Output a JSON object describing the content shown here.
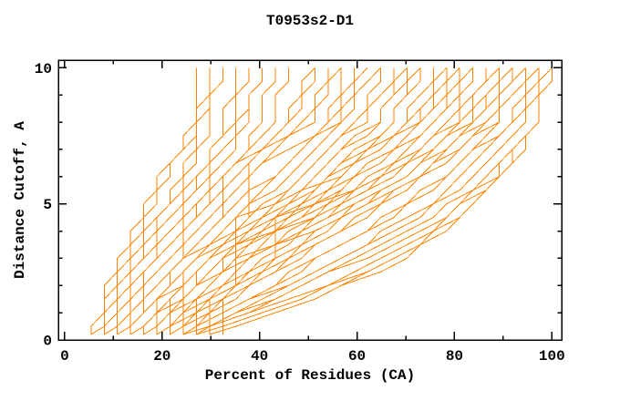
{
  "chart_data": {
    "type": "line",
    "title": "T0953s2-D1",
    "xlabel": "Percent of Residues (CA)",
    "ylabel": "Distance Cutoff, A",
    "xlim": [
      -1.3,
      102
    ],
    "ylim": [
      0,
      10.28
    ],
    "grid": false,
    "legend": "none",
    "background": "#ffffff",
    "axis_color": "#000000",
    "line_color": "#ff8300",
    "xticks": {
      "major": [
        0,
        20,
        40,
        60,
        80,
        100
      ],
      "labels": [
        "0",
        "20",
        "40",
        "60",
        "80",
        "100"
      ],
      "minor": [
        10,
        30,
        50,
        70,
        90
      ]
    },
    "yticks": {
      "major": [
        0,
        5,
        10
      ],
      "labels": [
        "0",
        "5",
        "10"
      ],
      "minor": [
        1,
        2,
        3,
        4,
        6,
        7,
        8,
        9
      ]
    },
    "residue_quantum_percent": 2.7027,
    "cutoff_step": 0.5,
    "anchor_cutoffs": [
      0.2,
      1.5,
      3,
      4.5,
      6,
      8,
      10
    ],
    "series": [
      {
        "percents": [
          6,
          9,
          13,
          17,
          21,
          26,
          28
        ]
      },
      {
        "percents": [
          7,
          10,
          14,
          19,
          24,
          28,
          29
        ]
      },
      {
        "percents": [
          5,
          8,
          12,
          16,
          20,
          28,
          33
        ]
      },
      {
        "percents": [
          8,
          12,
          16,
          20,
          25,
          31,
          31
        ]
      },
      {
        "percents": [
          9,
          13,
          18,
          23,
          28,
          33,
          36
        ]
      },
      {
        "percents": [
          7,
          11,
          15,
          21,
          27,
          34,
          38
        ]
      },
      {
        "percents": [
          10,
          14,
          19,
          25,
          31,
          37,
          40
        ]
      },
      {
        "percents": [
          6,
          10,
          16,
          22,
          29,
          36,
          41
        ]
      },
      {
        "percents": [
          11,
          15,
          21,
          27,
          33,
          40,
          43
        ]
      },
      {
        "percents": [
          8,
          13,
          19,
          26,
          33,
          42,
          47
        ]
      },
      {
        "percents": [
          12,
          17,
          23,
          30,
          37,
          45,
          50
        ]
      },
      {
        "percents": [
          9,
          14,
          21,
          28,
          36,
          46,
          52
        ]
      },
      {
        "percents": [
          13,
          18,
          25,
          32,
          32,
          49,
          54
        ]
      },
      {
        "percents": [
          10,
          16,
          23,
          31,
          39,
          50,
          56
        ]
      },
      {
        "percents": [
          14,
          20,
          27,
          35,
          43,
          53,
          58
        ]
      },
      {
        "percents": [
          11,
          17,
          25,
          33,
          42,
          54,
          60
        ]
      },
      {
        "percents": [
          15,
          21,
          29,
          37,
          37,
          56,
          62
        ]
      },
      {
        "percents": [
          12,
          19,
          27,
          36,
          45,
          57,
          64
        ]
      },
      {
        "percents": [
          16,
          23,
          31,
          40,
          49,
          60,
          66
        ]
      },
      {
        "percents": [
          13,
          20,
          29,
          38,
          48,
          61,
          68
        ]
      },
      {
        "percents": [
          17,
          24,
          33,
          42,
          52,
          64,
          70
        ]
      },
      {
        "percents": [
          14,
          22,
          31,
          41,
          51,
          64,
          71
        ]
      },
      {
        "percents": [
          18,
          26,
          35,
          45,
          55,
          67,
          73
        ]
      },
      {
        "percents": [
          15,
          23,
          33,
          43,
          54,
          67,
          74
        ]
      },
      {
        "percents": [
          19,
          27,
          37,
          47,
          57,
          70,
          76
        ]
      },
      {
        "percents": [
          16,
          25,
          35,
          35,
          57,
          71,
          78
        ]
      },
      {
        "percents": [
          20,
          29,
          39,
          50,
          60,
          73,
          79
        ]
      },
      {
        "percents": [
          17,
          26,
          37,
          48,
          60,
          74,
          81
        ]
      },
      {
        "percents": [
          21,
          30,
          41,
          52,
          63,
          76,
          82
        ]
      },
      {
        "percents": [
          18,
          28,
          39,
          51,
          63,
          77,
          84
        ]
      },
      {
        "percents": [
          22,
          32,
          43,
          43,
          66,
          79,
          85
        ]
      },
      {
        "percents": [
          19,
          29,
          41,
          53,
          66,
          80,
          87
        ]
      },
      {
        "percents": [
          23,
          33,
          45,
          57,
          69,
          82,
          88
        ]
      },
      {
        "percents": [
          20,
          31,
          43,
          56,
          69,
          83,
          90
        ]
      },
      {
        "percents": [
          24,
          35,
          47,
          60,
          72,
          85,
          91
        ]
      },
      {
        "percents": [
          22,
          34,
          48,
          62,
          74,
          87,
          93
        ]
      },
      {
        "percents": [
          25,
          38,
          52,
          66,
          78,
          89,
          95
        ]
      },
      {
        "percents": [
          23,
          37,
          52,
          67,
          79,
          91,
          96
        ]
      },
      {
        "percents": [
          26,
          40,
          56,
          71,
          82,
          93,
          97
        ]
      },
      {
        "percents": [
          24,
          39,
          56,
          72,
          84,
          94,
          99
        ]
      },
      {
        "percents": [
          27,
          43,
          60,
          76,
          87,
          96,
          100
        ]
      },
      {
        "percents": [
          25,
          42,
          61,
          78,
          89,
          97,
          100
        ]
      },
      {
        "percents": [
          19,
          20,
          24,
          40,
          55,
          72,
          80
        ]
      },
      {
        "percents": [
          22,
          22,
          27,
          44,
          60,
          76,
          84
        ]
      },
      {
        "percents": [
          25,
          25,
          30,
          48,
          64,
          80,
          88
        ]
      },
      {
        "percents": [
          27,
          28,
          33,
          50,
          67,
          83,
          92
        ]
      },
      {
        "percents": [
          30,
          30,
          36,
          54,
          70,
          86,
          95
        ]
      },
      {
        "percents": [
          33,
          33,
          38,
          56,
          72,
          88,
          97
        ]
      },
      {
        "percents": [
          26,
          47,
          66,
          79,
          88,
          96,
          100
        ]
      },
      {
        "percents": [
          29,
          50,
          68,
          80,
          89,
          97,
          100
        ]
      },
      {
        "percents": [
          31,
          52,
          70,
          82,
          90,
          97,
          100
        ]
      },
      {
        "percents": [
          27,
          49,
          68,
          81,
          90,
          96,
          99
        ]
      }
    ]
  }
}
